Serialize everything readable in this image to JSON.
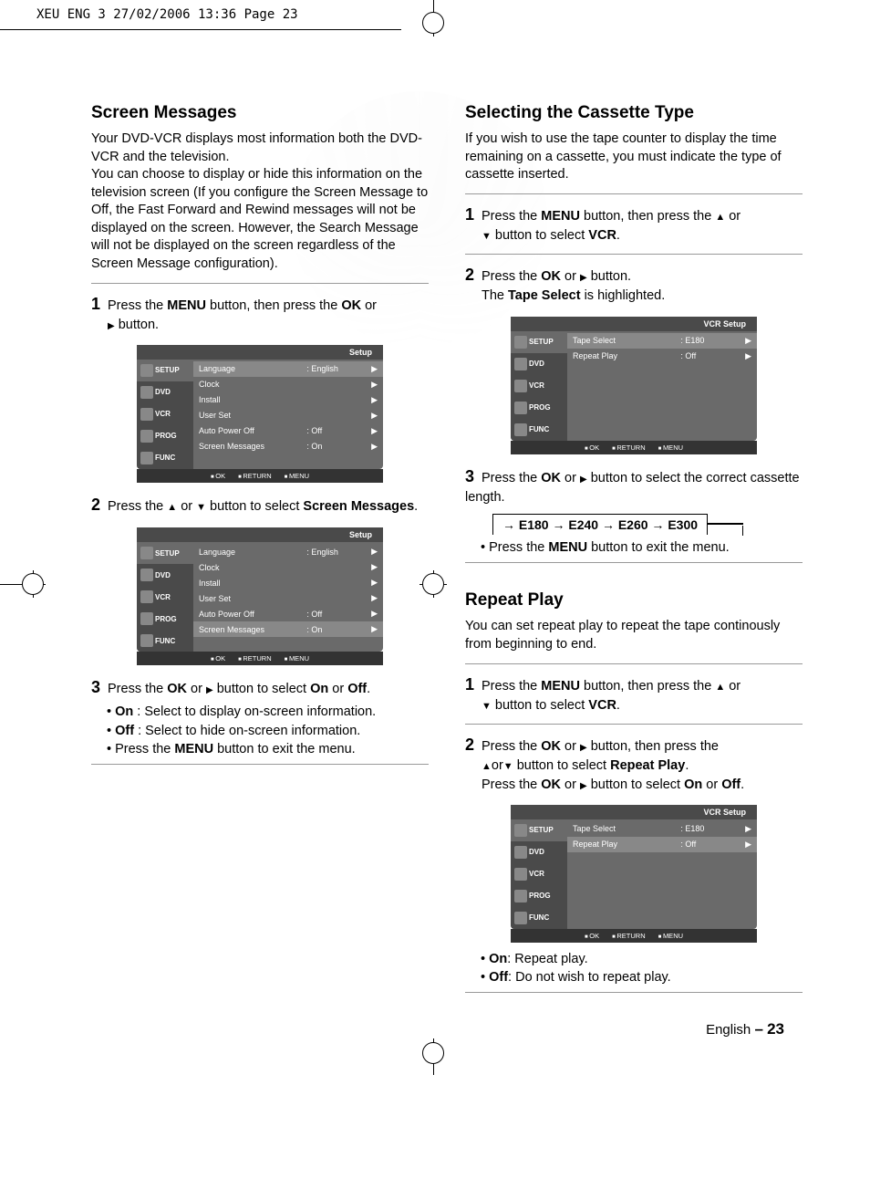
{
  "crop_header": "XEU ENG 3   27/02/2006  13:36  Page 23",
  "page_footer": {
    "lang": "English",
    "dash": "–",
    "num": "23"
  },
  "left": {
    "h_screen": "Screen Messages",
    "intro_screen": "Your DVD-VCR displays most information both the DVD-VCR and the television.\nYou can choose to display or hide this information on the television screen (If you configure the Screen Message to Off, the Fast Forward and Rewind messages will not be displayed on the screen. However, the Search Message will not be displayed on the screen regardless of the Screen Message configuration).",
    "step1_a": "Press the ",
    "step1_b": "MENU",
    "step1_c": " button, then press the ",
    "step1_d": "OK",
    "step1_e": " or",
    "step1_f": " button.",
    "step2_a": "Press the ",
    "step2_b": " or ",
    "step2_c": " button to select ",
    "step2_d": "Screen Messages",
    "step2_e": ".",
    "step3_a": "Press the ",
    "step3_b": "OK",
    "step3_c": " or ",
    "step3_d": " button to select ",
    "step3_e": "On",
    "step3_f": " or ",
    "step3_g": "Off",
    "step3_h": ".",
    "b_on": "On",
    "b_on_t": " : Select to display on-screen information.",
    "b_off": "Off",
    "b_off_t": " : Select to hide on-screen information.",
    "b_menu_a": "Press the ",
    "b_menu_b": "MENU",
    "b_menu_c": " button to exit the menu.",
    "osd1": {
      "title": "Setup",
      "tabs": [
        "SETUP",
        "DVD",
        "VCR",
        "PROG",
        "FUNC"
      ],
      "rows": [
        {
          "l": "Language",
          "v": ": English",
          "a": "▶"
        },
        {
          "l": "Clock",
          "v": "",
          "a": "▶"
        },
        {
          "l": "Install",
          "v": "",
          "a": "▶"
        },
        {
          "l": "User Set",
          "v": "",
          "a": "▶"
        },
        {
          "l": "Auto Power Off",
          "v": ": Off",
          "a": "▶"
        },
        {
          "l": "Screen Messages",
          "v": ": On",
          "a": "▶"
        }
      ],
      "highlight": 0,
      "footer": [
        "OK",
        "RETURN",
        "MENU"
      ]
    },
    "osd2": {
      "title": "Setup",
      "tabs": [
        "SETUP",
        "DVD",
        "VCR",
        "PROG",
        "FUNC"
      ],
      "rows": [
        {
          "l": "Language",
          "v": ": English",
          "a": "▶"
        },
        {
          "l": "Clock",
          "v": "",
          "a": "▶"
        },
        {
          "l": "Install",
          "v": "",
          "a": "▶"
        },
        {
          "l": "User Set",
          "v": "",
          "a": "▶"
        },
        {
          "l": "Auto Power Off",
          "v": ": Off",
          "a": "▶"
        },
        {
          "l": "Screen Messages",
          "v": ": On",
          "a": "▶"
        }
      ],
      "highlight": 5,
      "footer": [
        "OK",
        "RETURN",
        "MENU"
      ]
    }
  },
  "right": {
    "h_cassette": "Selecting the Cassette Type",
    "intro_cassette": "If you wish to use the tape counter to display the time remaining on a cassette, you must indicate the type of cassette inserted.",
    "step1_a": "Press the ",
    "step1_b": "MENU",
    "step1_c": " button, then press the ",
    "step1_d": " or",
    "step1_e": " button to select ",
    "step1_f": "VCR",
    "step1_g": ".",
    "step2_a": "Press the ",
    "step2_b": "OK",
    "step2_c": " or ",
    "step2_d": " button.",
    "step2_e": "The ",
    "step2_f": "Tape Select",
    "step2_g": " is highlighted.",
    "step3_a": "Press the ",
    "step3_b": "OK",
    "step3_c": " or ",
    "step3_d": " button to select the correct cassette length.",
    "cassette_chain": "→ E180 → E240 → E260 → E300",
    "b_menu_a": "Press the ",
    "b_menu_b": "MENU",
    "b_menu_c": " button to exit the menu.",
    "osd_vcr1": {
      "title": "VCR Setup",
      "tabs": [
        "SETUP",
        "DVD",
        "VCR",
        "PROG",
        "FUNC"
      ],
      "rows": [
        {
          "l": "Tape Select",
          "v": ": E180",
          "a": "▶"
        },
        {
          "l": "Repeat Play",
          "v": ": Off",
          "a": "▶"
        }
      ],
      "highlight": 0,
      "footer": [
        "OK",
        "RETURN",
        "MENU"
      ]
    },
    "h_repeat": "Repeat Play",
    "intro_repeat": "You can set repeat play to repeat the tape continously from beginning to end.",
    "r_step1_a": "Press the ",
    "r_step1_b": "MENU",
    "r_step1_c": " button, then press the ",
    "r_step1_d": " or",
    "r_step1_e": " button to select ",
    "r_step1_f": "VCR",
    "r_step1_g": ".",
    "r_step2_a": "Press the ",
    "r_step2_b": "OK",
    "r_step2_c": " or ",
    "r_step2_d": " button, then press the",
    "r_step2_e": "or",
    "r_step2_f": " button to select ",
    "r_step2_g": "Repeat Play",
    "r_step2_h": ".",
    "r_step2_i": "Press the ",
    "r_step2_j": "OK",
    "r_step2_k": " or ",
    "r_step2_l": " button to select ",
    "r_step2_m": "On",
    "r_step2_n": " or ",
    "r_step2_o": "Off",
    "r_step2_p": ".",
    "osd_vcr2": {
      "title": "VCR Setup",
      "tabs": [
        "SETUP",
        "DVD",
        "VCR",
        "PROG",
        "FUNC"
      ],
      "rows": [
        {
          "l": "Tape Select",
          "v": ": E180",
          "a": "▶"
        },
        {
          "l": "Repeat Play",
          "v": ": Off",
          "a": "▶"
        }
      ],
      "highlight": 1,
      "footer": [
        "OK",
        "RETURN",
        "MENU"
      ]
    },
    "rb_on": "On",
    "rb_on_t": ": Repeat play.",
    "rb_off": "Off",
    "rb_off_t": ": Do not wish to repeat play."
  }
}
